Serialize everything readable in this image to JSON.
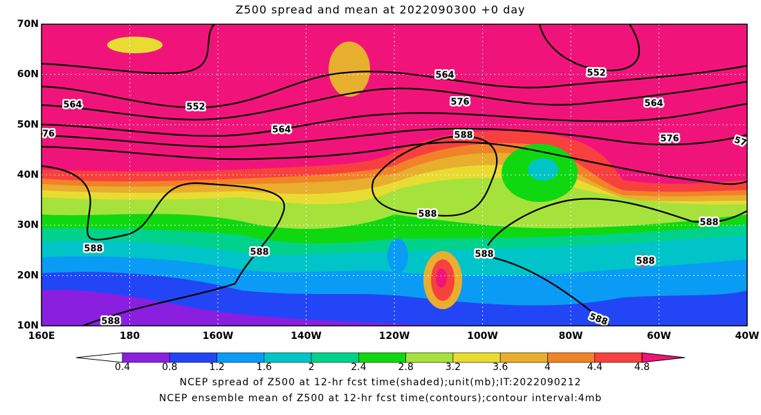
{
  "title": "Z500 spread and mean at 2022090300 +0 day",
  "lat_labels": [
    "70N",
    "60N",
    "50N",
    "40N",
    "30N",
    "20N",
    "10N"
  ],
  "lon_labels": [
    "160E",
    "180",
    "160W",
    "140W",
    "120W",
    "100W",
    "80W",
    "60W",
    "40W"
  ],
  "contour_labels": [
    "564",
    "552",
    "564",
    "564",
    "576",
    "552",
    "564",
    "576",
    "76",
    "588",
    "57",
    "588",
    "588",
    "588",
    "588",
    "588",
    "588",
    "588",
    "588"
  ],
  "colorbar": {
    "ticks": [
      0.4,
      0.8,
      1.2,
      1.6,
      2,
      2.4,
      2.8,
      3.2,
      3.6,
      4,
      4.4,
      4.8
    ],
    "colors": [
      "#ffffff",
      "#8a1fe0",
      "#2246f5",
      "#0a9cf5",
      "#00c4c8",
      "#00d28c",
      "#10d810",
      "#a6e23c",
      "#e8dc32",
      "#e8ae2e",
      "#f28228",
      "#f8403e",
      "#f0147a"
    ]
  },
  "captions": [
    "NCEP spread of Z500 at 12-hr fcst time(shaded);unit(mb);IT:2022090212",
    "NCEP ensemble mean of Z500 at 12-hr fcst time(contours);contour interval:4mb"
  ]
}
